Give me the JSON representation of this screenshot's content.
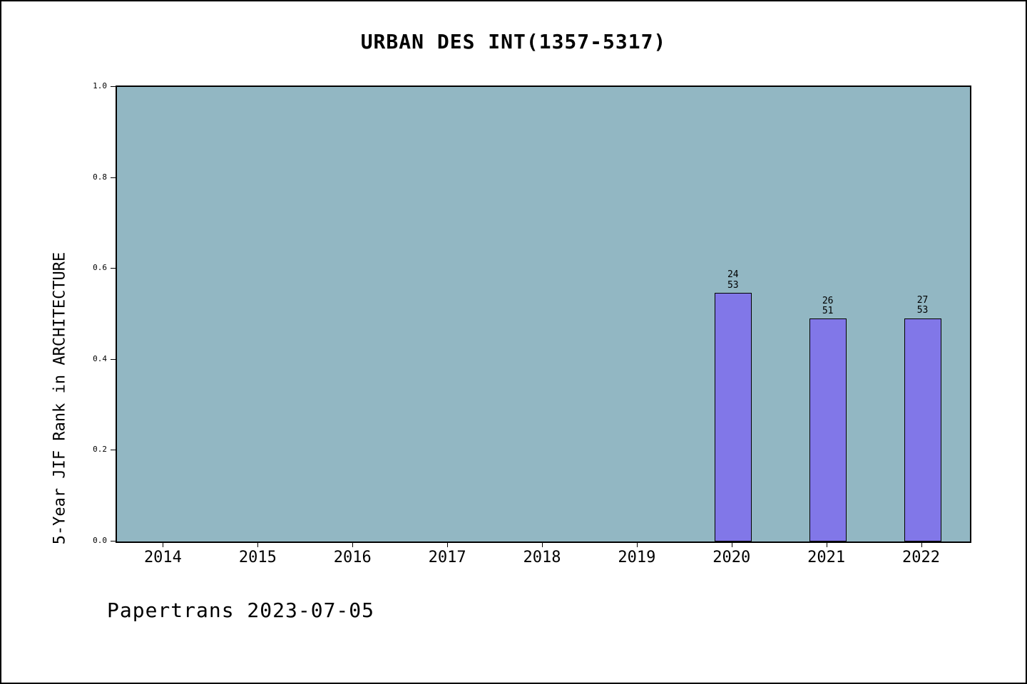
{
  "title": "URBAN DES INT(1357-5317)",
  "footer": "Papertrans 2023-07-05",
  "chart_data": {
    "type": "bar",
    "title": "URBAN DES INT(1357-5317)",
    "xlabel": "",
    "ylabel": "5-Year JIF Rank in ARCHITECTURE",
    "x": [
      2020,
      2021,
      2022
    ],
    "values": [
      0.547,
      0.49,
      0.491
    ],
    "bar_labels": [
      [
        "24",
        "53"
      ],
      [
        "26",
        "51"
      ],
      [
        "27",
        "53"
      ]
    ],
    "xticks": [
      2014,
      2015,
      2016,
      2017,
      2018,
      2019,
      2020,
      2021,
      2022
    ],
    "yticks": [
      0.0,
      0.2,
      0.4,
      0.6,
      0.8,
      1.0
    ],
    "xlim": [
      2013.5,
      2022.5
    ],
    "ylim": [
      0.0,
      1.0
    ],
    "grid": false,
    "legend": null,
    "colors": {
      "plot_bg": "#92b7c3",
      "bar_fill": "#8177e8",
      "bar_edge": "#000000",
      "axis": "#000000"
    }
  }
}
